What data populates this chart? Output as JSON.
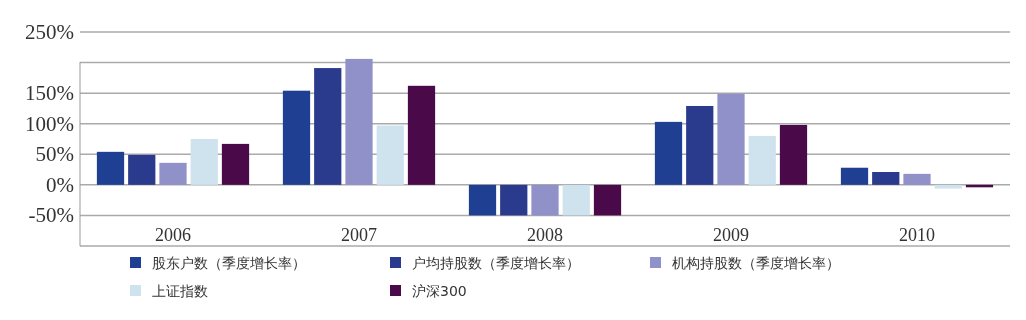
{
  "chart_data": {
    "type": "bar",
    "categories": [
      "2006",
      "2007",
      "2008",
      "2009",
      "2010"
    ],
    "series": [
      {
        "name": "股东户数（季度增长率）",
        "color": "#1f3f93",
        "values": [
          54,
          154,
          -50,
          103,
          28
        ]
      },
      {
        "name": "户均持股数（季度增长率）",
        "color": "#2a3a8c",
        "values": [
          49,
          191,
          -50,
          129,
          21
        ]
      },
      {
        "name": "机构持股数（季度增长率）",
        "color": "#9191c9",
        "values": [
          36,
          206,
          -50,
          149,
          18
        ]
      },
      {
        "name": "上证指数",
        "color": "#cfe3ee",
        "values": [
          75,
          97,
          -50,
          80,
          -6
        ]
      },
      {
        "name": "沪深300",
        "color": "#4a0a4a",
        "values": [
          67,
          162,
          -50,
          98,
          -4
        ]
      }
    ],
    "ylim": [
      -100,
      250
    ],
    "yticks": [
      {
        "value": 250,
        "label": "250%"
      },
      {
        "value": 200,
        "label": null
      },
      {
        "value": 150,
        "label": "150%"
      },
      {
        "value": 100,
        "label": "100%"
      },
      {
        "value": 50,
        "label": "50%"
      },
      {
        "value": 0,
        "label": "0%"
      },
      {
        "value": -50,
        "label": "-50%"
      },
      {
        "value": -100,
        "label": null
      }
    ],
    "grid": "y",
    "legend": "bottom"
  }
}
